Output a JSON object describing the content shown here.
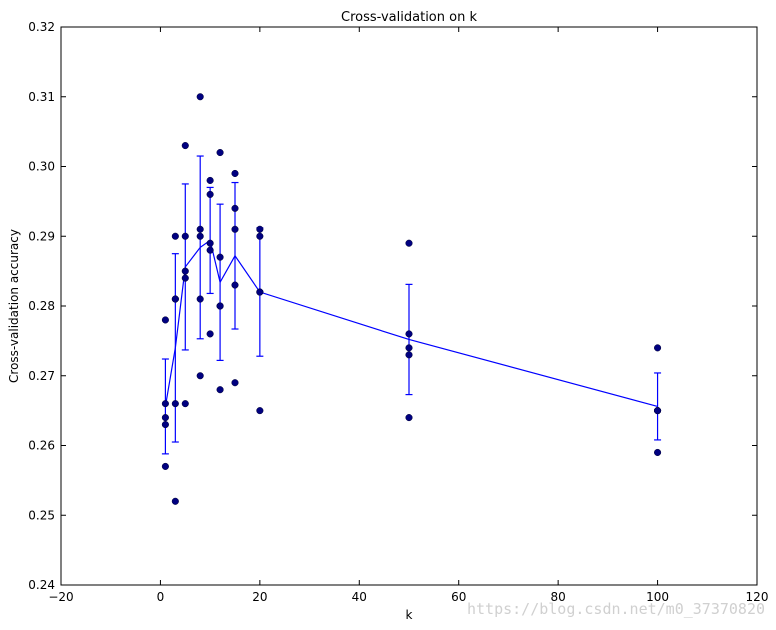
{
  "chart_data": {
    "type": "scatter",
    "title": "Cross-validation on k",
    "xlabel": "k",
    "ylabel": "Cross-validation accuracy",
    "xlim": [
      -20,
      120
    ],
    "ylim": [
      0.24,
      0.32
    ],
    "xticks": [
      -20,
      0,
      20,
      40,
      60,
      80,
      100,
      120
    ],
    "yticks": [
      0.24,
      0.25,
      0.26,
      0.27,
      0.28,
      0.29,
      0.3,
      0.31,
      0.32
    ],
    "xtick_labels": [
      "−20",
      "0",
      "20",
      "40",
      "60",
      "80",
      "100",
      "120"
    ],
    "ytick_labels": [
      "0.24",
      "0.25",
      "0.26",
      "0.27",
      "0.28",
      "0.29",
      "0.30",
      "0.31",
      "0.32"
    ],
    "grid": false,
    "colors": {
      "points": "#000080",
      "line": "#0000ff"
    },
    "scatter_points": [
      {
        "k": 1,
        "accuracy": 0.257
      },
      {
        "k": 1,
        "accuracy": 0.263
      },
      {
        "k": 1,
        "accuracy": 0.264
      },
      {
        "k": 1,
        "accuracy": 0.266
      },
      {
        "k": 1,
        "accuracy": 0.278
      },
      {
        "k": 3,
        "accuracy": 0.252
      },
      {
        "k": 3,
        "accuracy": 0.266
      },
      {
        "k": 3,
        "accuracy": 0.281
      },
      {
        "k": 3,
        "accuracy": 0.281
      },
      {
        "k": 3,
        "accuracy": 0.29
      },
      {
        "k": 5,
        "accuracy": 0.266
      },
      {
        "k": 5,
        "accuracy": 0.284
      },
      {
        "k": 5,
        "accuracy": 0.285
      },
      {
        "k": 5,
        "accuracy": 0.29
      },
      {
        "k": 5,
        "accuracy": 0.303
      },
      {
        "k": 8,
        "accuracy": 0.27
      },
      {
        "k": 8,
        "accuracy": 0.281
      },
      {
        "k": 8,
        "accuracy": 0.29
      },
      {
        "k": 8,
        "accuracy": 0.291
      },
      {
        "k": 8,
        "accuracy": 0.31
      },
      {
        "k": 10,
        "accuracy": 0.276
      },
      {
        "k": 10,
        "accuracy": 0.288
      },
      {
        "k": 10,
        "accuracy": 0.289
      },
      {
        "k": 10,
        "accuracy": 0.296
      },
      {
        "k": 10,
        "accuracy": 0.298
      },
      {
        "k": 12,
        "accuracy": 0.268
      },
      {
        "k": 12,
        "accuracy": 0.28
      },
      {
        "k": 12,
        "accuracy": 0.28
      },
      {
        "k": 12,
        "accuracy": 0.287
      },
      {
        "k": 12,
        "accuracy": 0.302
      },
      {
        "k": 15,
        "accuracy": 0.269
      },
      {
        "k": 15,
        "accuracy": 0.283
      },
      {
        "k": 15,
        "accuracy": 0.291
      },
      {
        "k": 15,
        "accuracy": 0.294
      },
      {
        "k": 15,
        "accuracy": 0.299
      },
      {
        "k": 20,
        "accuracy": 0.265
      },
      {
        "k": 20,
        "accuracy": 0.282
      },
      {
        "k": 20,
        "accuracy": 0.282
      },
      {
        "k": 20,
        "accuracy": 0.29
      },
      {
        "k": 20,
        "accuracy": 0.291
      },
      {
        "k": 50,
        "accuracy": 0.264
      },
      {
        "k": 50,
        "accuracy": 0.273
      },
      {
        "k": 50,
        "accuracy": 0.274
      },
      {
        "k": 50,
        "accuracy": 0.276
      },
      {
        "k": 50,
        "accuracy": 0.289
      },
      {
        "k": 100,
        "accuracy": 0.259
      },
      {
        "k": 100,
        "accuracy": 0.265
      },
      {
        "k": 100,
        "accuracy": 0.265
      },
      {
        "k": 100,
        "accuracy": 0.265
      },
      {
        "k": 100,
        "accuracy": 0.274
      }
    ],
    "mean_line": {
      "x": [
        1,
        3,
        5,
        8,
        10,
        12,
        15,
        20,
        50,
        100
      ],
      "mean": [
        0.2656,
        0.274,
        0.2856,
        0.2884,
        0.2894,
        0.2834,
        0.2872,
        0.282,
        0.2752,
        0.2656
      ],
      "std": [
        0.0068,
        0.0135,
        0.0119,
        0.0131,
        0.0076,
        0.0112,
        0.0105,
        0.0092,
        0.0079,
        0.0048
      ]
    }
  },
  "watermark": "https://blog.csdn.net/m0_37370820"
}
